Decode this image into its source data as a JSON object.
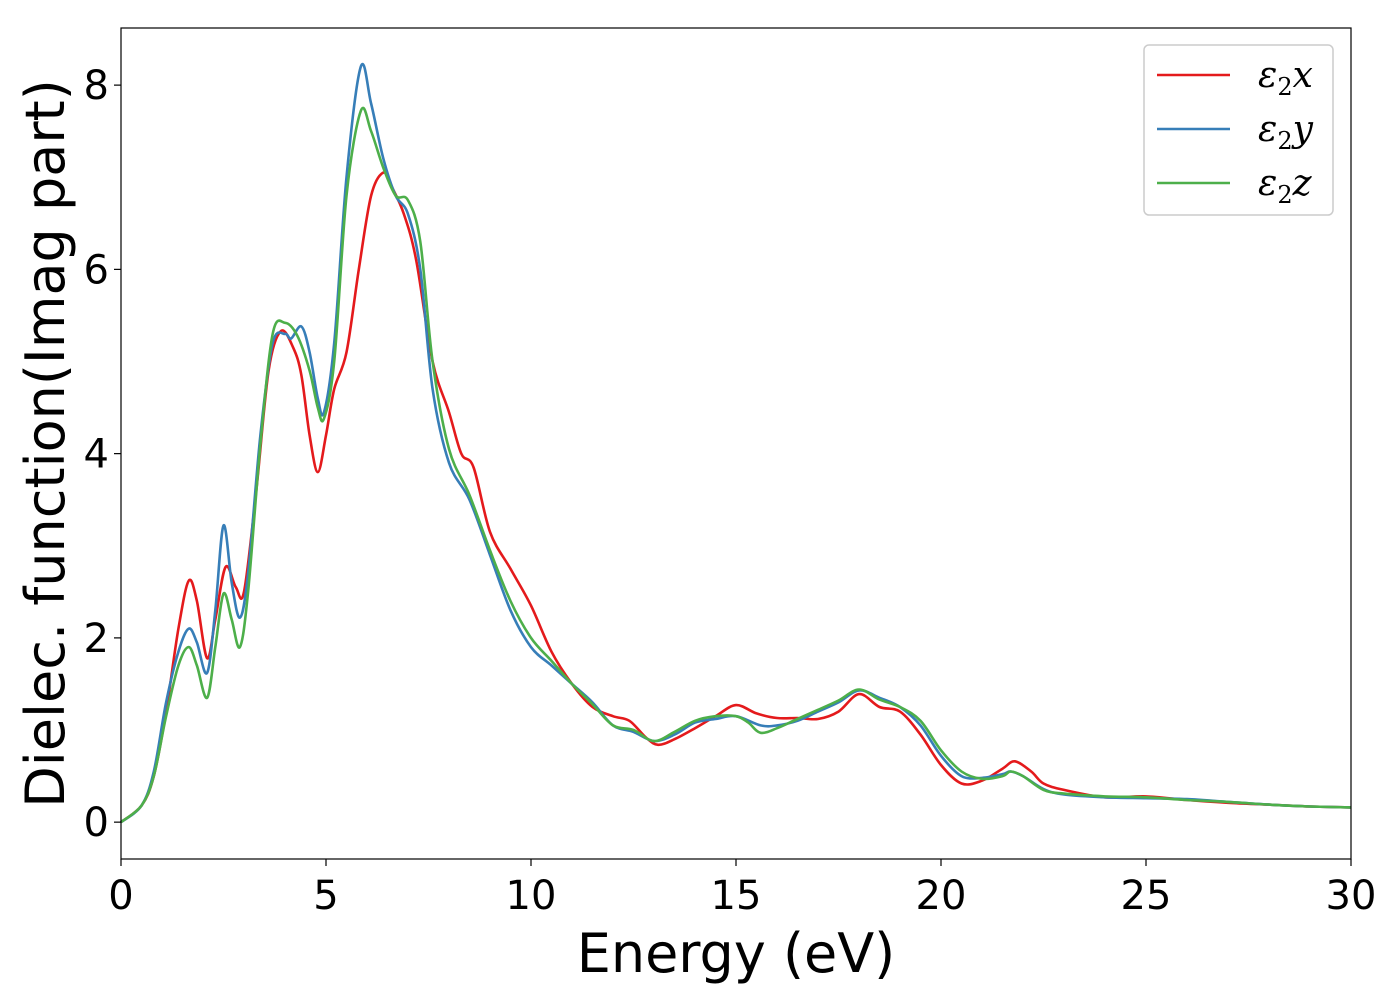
{
  "chart_data": {
    "type": "line",
    "title": "",
    "xlabel": "Energy (eV)",
    "ylabel": "Dielec. function(Imag part)",
    "xlim": [
      0,
      30
    ],
    "ylim": [
      -0.4,
      8.62
    ],
    "xticks": [
      0,
      5,
      10,
      15,
      20,
      25,
      30
    ],
    "xtick_labels": [
      "0",
      "5",
      "10",
      "15",
      "20",
      "25",
      "30"
    ],
    "yticks": [
      0,
      2,
      4,
      6,
      8
    ],
    "ytick_labels": [
      "0",
      "2",
      "4",
      "6",
      "8"
    ],
    "grid": false,
    "legend_position": "top-right",
    "series": [
      {
        "name": "ε2x",
        "name_base": "ε",
        "name_sub": "2",
        "name_var": "x",
        "color": "#e41a1c",
        "x": [
          0,
          0.5,
          0.8,
          1.1,
          1.4,
          1.65,
          1.85,
          2.1,
          2.3,
          2.55,
          2.8,
          3.0,
          3.3,
          3.6,
          3.9,
          4.2,
          4.4,
          4.6,
          4.8,
          5.0,
          5.2,
          5.5,
          5.8,
          6.1,
          6.4,
          6.6,
          6.9,
          7.2,
          7.6,
          8.0,
          8.3,
          8.6,
          9.0,
          9.5,
          10.0,
          10.5,
          11.0,
          11.5,
          12.0,
          12.4,
          12.8,
          13.1,
          13.5,
          14.0,
          14.5,
          15.0,
          15.5,
          16.0,
          16.5,
          17.0,
          17.5,
          18.0,
          18.5,
          19.0,
          19.5,
          20.0,
          20.5,
          21.0,
          21.5,
          21.8,
          22.2,
          22.5,
          23.0,
          24.0,
          25.0,
          26.0,
          27.0,
          28.0,
          29.0,
          30.0
        ],
        "y": [
          0,
          0.18,
          0.5,
          1.2,
          2.1,
          2.62,
          2.4,
          1.78,
          2.2,
          2.77,
          2.55,
          2.5,
          3.6,
          4.9,
          5.33,
          5.15,
          4.85,
          4.2,
          3.8,
          4.2,
          4.7,
          5.1,
          6.0,
          6.8,
          7.05,
          6.9,
          6.6,
          6.1,
          5.0,
          4.45,
          4.0,
          3.85,
          3.15,
          2.75,
          2.35,
          1.85,
          1.5,
          1.25,
          1.15,
          1.1,
          0.92,
          0.84,
          0.9,
          1.02,
          1.15,
          1.27,
          1.18,
          1.13,
          1.13,
          1.12,
          1.2,
          1.39,
          1.25,
          1.2,
          0.95,
          0.62,
          0.42,
          0.45,
          0.58,
          0.66,
          0.55,
          0.42,
          0.35,
          0.27,
          0.28,
          0.24,
          0.21,
          0.19,
          0.17,
          0.16
        ]
      },
      {
        "name": "ε2y",
        "name_base": "ε",
        "name_sub": "2",
        "name_var": "y",
        "color": "#377eb8",
        "x": [
          0,
          0.5,
          0.8,
          1.1,
          1.4,
          1.65,
          1.85,
          2.1,
          2.3,
          2.5,
          2.7,
          2.9,
          3.1,
          3.4,
          3.7,
          4.0,
          4.15,
          4.4,
          4.6,
          4.8,
          4.95,
          5.2,
          5.5,
          5.85,
          6.1,
          6.4,
          6.7,
          7.0,
          7.3,
          7.6,
          8.0,
          8.5,
          9.0,
          9.5,
          10.0,
          10.5,
          11.0,
          11.5,
          12.0,
          12.5,
          13.0,
          13.5,
          14.0,
          14.5,
          15.0,
          15.6,
          16.0,
          16.5,
          17.0,
          17.5,
          18.0,
          18.5,
          19.0,
          19.5,
          20.0,
          20.5,
          21.0,
          21.5,
          21.7,
          22.0,
          22.5,
          23.0,
          24.0,
          25.0,
          26.0,
          27.0,
          28.0,
          29.0,
          30.0
        ],
        "y": [
          0,
          0.18,
          0.55,
          1.3,
          1.85,
          2.1,
          1.95,
          1.62,
          2.3,
          3.22,
          2.6,
          2.22,
          2.7,
          4.2,
          5.2,
          5.3,
          5.25,
          5.38,
          5.1,
          4.6,
          4.45,
          5.2,
          7.0,
          8.2,
          7.8,
          7.2,
          6.8,
          6.6,
          6.0,
          4.7,
          3.9,
          3.5,
          2.9,
          2.3,
          1.9,
          1.7,
          1.5,
          1.3,
          1.05,
          0.98,
          0.88,
          0.95,
          1.08,
          1.12,
          1.15,
          1.05,
          1.05,
          1.1,
          1.2,
          1.3,
          1.43,
          1.35,
          1.25,
          1.05,
          0.72,
          0.5,
          0.48,
          0.52,
          0.55,
          0.5,
          0.36,
          0.3,
          0.27,
          0.26,
          0.25,
          0.22,
          0.19,
          0.17,
          0.16
        ]
      },
      {
        "name": "ε2z",
        "name_base": "ε",
        "name_sub": "2",
        "name_var": "z",
        "color": "#4daf4a",
        "x": [
          0,
          0.5,
          0.8,
          1.1,
          1.4,
          1.65,
          1.85,
          2.1,
          2.3,
          2.5,
          2.7,
          2.9,
          3.1,
          3.4,
          3.7,
          4.0,
          4.3,
          4.6,
          4.8,
          4.95,
          5.2,
          5.5,
          5.85,
          6.1,
          6.4,
          6.7,
          7.0,
          7.3,
          7.6,
          8.0,
          8.5,
          9.0,
          9.5,
          10.0,
          10.5,
          11.0,
          11.5,
          12.0,
          12.5,
          13.0,
          13.5,
          14.0,
          14.5,
          15.0,
          15.3,
          15.6,
          16.0,
          16.5,
          17.0,
          17.5,
          18.0,
          18.5,
          19.0,
          19.5,
          20.0,
          20.5,
          21.0,
          21.5,
          21.7,
          22.0,
          22.5,
          23.0,
          24.0,
          25.0,
          26.0,
          27.0,
          28.0,
          29.0,
          30.0
        ],
        "y": [
          0,
          0.18,
          0.5,
          1.15,
          1.7,
          1.9,
          1.7,
          1.35,
          1.9,
          2.48,
          2.2,
          1.9,
          2.5,
          4.1,
          5.3,
          5.42,
          5.28,
          4.9,
          4.5,
          4.38,
          5.0,
          6.8,
          7.72,
          7.5,
          7.1,
          6.8,
          6.75,
          6.3,
          5.0,
          4.05,
          3.55,
          2.95,
          2.4,
          2.0,
          1.75,
          1.5,
          1.28,
          1.05,
          1.0,
          0.88,
          0.98,
          1.1,
          1.15,
          1.15,
          1.08,
          0.97,
          1.02,
          1.12,
          1.22,
          1.32,
          1.44,
          1.33,
          1.25,
          1.1,
          0.78,
          0.55,
          0.47,
          0.5,
          0.55,
          0.5,
          0.35,
          0.31,
          0.28,
          0.27,
          0.24,
          0.22,
          0.19,
          0.17,
          0.16
        ]
      }
    ]
  }
}
